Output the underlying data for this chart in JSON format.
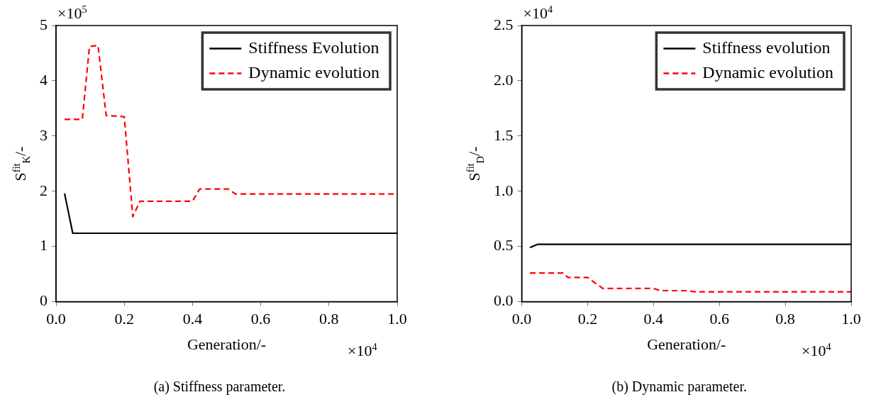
{
  "chart_data": [
    {
      "type": "line",
      "xlabel": "Generation/-",
      "ylabel": "S$^{fit}$$_{K}$/-",
      "annotations": [
        "×10$^{5}$",
        "×10$^{4}$",
        "(a) Stiffness parameter."
      ],
      "xlim": [
        0,
        1
      ],
      "xticks": [
        {
          "value": 0,
          "label": "0.0"
        },
        {
          "value": 0.2,
          "label": "0.2"
        },
        {
          "value": 0.4,
          "label": "0.4"
        },
        {
          "value": 0.6,
          "label": "0.6"
        },
        {
          "value": 0.8,
          "label": "0.8"
        },
        {
          "value": 1,
          "label": "1.0"
        }
      ],
      "ylim": [
        0,
        5
      ],
      "yticks": [
        0,
        1,
        2,
        3,
        4,
        5
      ],
      "grid": false,
      "legend": "top right",
      "marker": "none",
      "series": [
        {
          "name": "Stiffness Evolution",
          "color": "#000000",
          "line_style": "solid",
          "x": [
            0.025,
            0.049,
            1.0
          ],
          "values": [
            1.96,
            1.24,
            1.24
          ]
        },
        {
          "name": "Dynamic evolution",
          "color": "#ff0000",
          "line_style": "dashed",
          "x": [
            0.025,
            0.077,
            0.098,
            0.123,
            0.147,
            0.2,
            0.225,
            0.246,
            0.4,
            0.421,
            0.505,
            0.526,
            1.0
          ],
          "values": [
            3.3,
            3.3,
            4.62,
            4.64,
            3.37,
            3.35,
            1.54,
            1.82,
            1.82,
            2.04,
            2.04,
            1.95,
            1.95
          ]
        }
      ]
    },
    {
      "type": "line",
      "xlabel": "Generation/-",
      "ylabel": "S$^{fit}$$_{D}$/-",
      "annotations": [
        "×10$^{4}$",
        "×10$^{4}$",
        "(b) Dynamic parameter."
      ],
      "xlim": [
        0,
        1
      ],
      "xticks": [
        {
          "value": 0,
          "label": "0.0"
        },
        {
          "value": 0.2,
          "label": "0.2"
        },
        {
          "value": 0.4,
          "label": "0.4"
        },
        {
          "value": 0.6,
          "label": "0.6"
        },
        {
          "value": 0.8,
          "label": "0.8"
        },
        {
          "value": 1,
          "label": "1.0"
        }
      ],
      "ylim": [
        0,
        2.5
      ],
      "yticks": [
        {
          "value": 0,
          "label": "0.0"
        },
        0.5,
        {
          "value": 1,
          "label": "1.0"
        },
        1.5,
        {
          "value": 2,
          "label": "2.0"
        },
        2.5
      ],
      "grid": false,
      "legend": "top right",
      "marker": "none",
      "series": [
        {
          "name": "Stiffness evolution",
          "color": "#000000",
          "line_style": "solid",
          "x": [
            0.025,
            0.049,
            1.0
          ],
          "values": [
            0.49,
            0.52,
            0.52
          ]
        },
        {
          "name": "Dynamic evolution",
          "color": "#ff0000",
          "line_style": "dashed",
          "x": [
            0.025,
            0.126,
            0.14,
            0.2,
            0.246,
            0.4,
            0.421,
            0.505,
            0.526,
            1.0
          ],
          "values": [
            0.26,
            0.26,
            0.22,
            0.22,
            0.12,
            0.12,
            0.1,
            0.1,
            0.09,
            0.09
          ]
        }
      ]
    }
  ]
}
